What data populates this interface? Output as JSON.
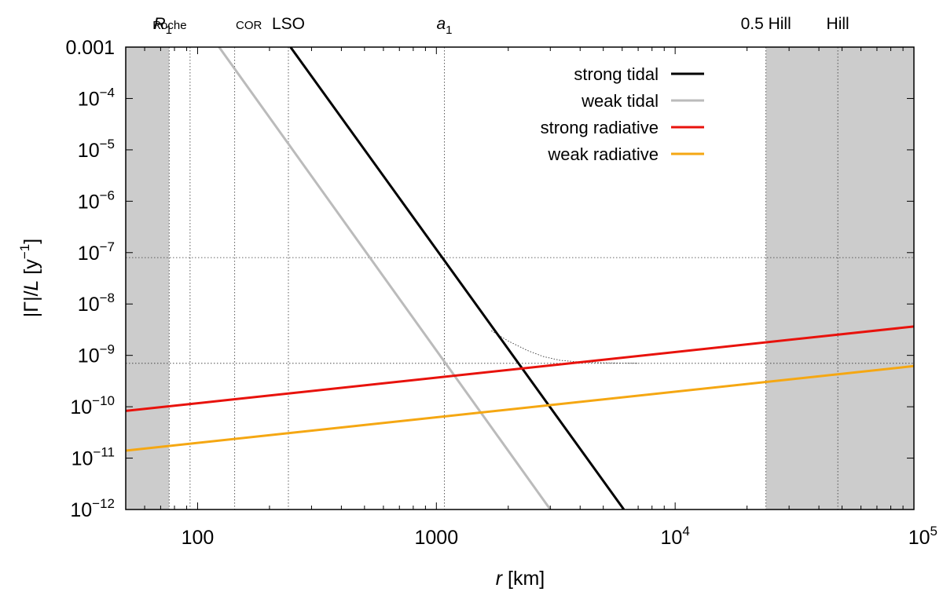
{
  "chart_data": {
    "type": "line",
    "xscale": "log",
    "yscale": "log",
    "xlim": [
      50,
      100000
    ],
    "ylim": [
      1e-12,
      0.001
    ],
    "xlabel": {
      "var": "r",
      "unit": "[km]"
    },
    "ylabel": {
      "lhs": "|Γ|/",
      "var": "L",
      "open": " [y",
      "exp": "−1",
      "close": "]"
    },
    "xticks": [
      {
        "value": 100,
        "base": "100",
        "exp": ""
      },
      {
        "value": 1000,
        "base": "1000",
        "exp": ""
      },
      {
        "value": 10000,
        "base": "10",
        "exp": "4"
      },
      {
        "value": 100000,
        "base": "10",
        "exp": "5"
      }
    ],
    "yticks": [
      {
        "value": 0.001,
        "base": "0.001",
        "exp": ""
      },
      {
        "value": 0.0001,
        "base": "10",
        "exp": "−4"
      },
      {
        "value": 1e-05,
        "base": "10",
        "exp": "−5"
      },
      {
        "value": 1e-06,
        "base": "10",
        "exp": "−6"
      },
      {
        "value": 1e-07,
        "base": "10",
        "exp": "−7"
      },
      {
        "value": 1e-08,
        "base": "10",
        "exp": "−8"
      },
      {
        "value": 1e-09,
        "base": "10",
        "exp": "−9"
      },
      {
        "value": 1e-10,
        "base": "10",
        "exp": "−10"
      },
      {
        "value": 1e-11,
        "base": "10",
        "exp": "−11"
      },
      {
        "value": 1e-12,
        "base": "10",
        "exp": "−12"
      }
    ],
    "shaded_regions": [
      {
        "name": "inside-primary",
        "x0": 50,
        "x1": 76
      },
      {
        "name": "beyond-half-hill",
        "x0": 24000,
        "x1": 100000
      }
    ],
    "reference_lines": [
      {
        "name": "R1",
        "x": 76,
        "label": "R",
        "sub": "1",
        "size": "normal"
      },
      {
        "name": "Roche",
        "x": 93,
        "label": "Roche",
        "sub": "",
        "size": "small"
      },
      {
        "name": "COR",
        "x": 143,
        "label": "COR",
        "sub": "",
        "size": "small"
      },
      {
        "name": "LSO",
        "x": 240,
        "label": "LSO",
        "sub": "",
        "size": "normal"
      },
      {
        "name": "a1",
        "x": 1080,
        "label": "a",
        "sub": "1",
        "size": "normal"
      },
      {
        "name": "half-hill",
        "x": 24000,
        "label": "0.5 Hill",
        "sub": "",
        "size": "normal"
      },
      {
        "name": "hill",
        "x": 48000,
        "label": "Hill",
        "sub": "",
        "size": "normal"
      }
    ],
    "horizontal_lines": [
      8e-08,
      7e-10
    ],
    "series": [
      {
        "name": "strong tidal",
        "color": "#000000",
        "x": [
          245,
          6100
        ],
        "y": [
          0.001,
          1e-12
        ]
      },
      {
        "name": "weak tidal",
        "color": "#bbbbbb",
        "x": [
          123,
          3000
        ],
        "y": [
          0.001,
          1e-12
        ]
      },
      {
        "name": "strong radiative",
        "color": "#e8120c",
        "x": [
          50,
          100000
        ],
        "y": [
          8.3e-11,
          3.65e-09
        ]
      },
      {
        "name": "weak radiative",
        "color": "#f5a712",
        "x": [
          50,
          100000
        ],
        "y": [
          1.4e-11,
          6.2e-10
        ]
      }
    ],
    "dotted_curve": {
      "name": "radiative plateau",
      "x": [
        1700,
        2000,
        2400,
        2800,
        3300,
        4000,
        5000,
        7000
      ],
      "y": [
        3e-09,
        1.9e-09,
        1.25e-09,
        9.5e-10,
        8e-10,
        7.4e-10,
        7.15e-10,
        7e-10
      ]
    }
  }
}
